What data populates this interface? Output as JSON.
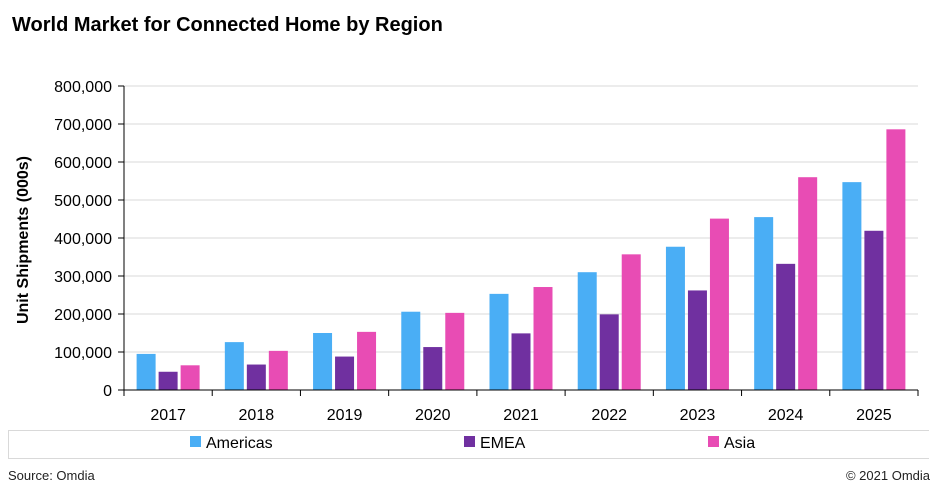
{
  "chart_data": {
    "type": "bar",
    "title": "World Market for Connected Home by Region",
    "ylabel": "Unit Shipments (000s)",
    "xlabel": "",
    "ylim": [
      0,
      800000
    ],
    "yticks": [
      "0",
      "100,000",
      "200,000",
      "300,000",
      "400,000",
      "500,000",
      "600,000",
      "700,000",
      "800,000"
    ],
    "categories": [
      "2017",
      "2018",
      "2019",
      "2020",
      "2021",
      "2022",
      "2023",
      "2024",
      "2025"
    ],
    "series": [
      {
        "name": "Americas",
        "color": "#4aaef5",
        "values": [
          95000,
          126000,
          150000,
          206000,
          253000,
          310000,
          377000,
          455000,
          547000
        ]
      },
      {
        "name": "EMEA",
        "color": "#7030a0",
        "values": [
          48000,
          67000,
          88000,
          113000,
          149000,
          199000,
          262000,
          332000,
          419000
        ]
      },
      {
        "name": "Asia",
        "color": "#e84cb4",
        "values": [
          65000,
          103000,
          153000,
          203000,
          271000,
          357000,
          451000,
          560000,
          686000
        ]
      }
    ],
    "legend_position": "bottom",
    "grid": true
  },
  "footer": {
    "source": "Source: Omdia",
    "copyright": "© 2021 Omdia"
  }
}
